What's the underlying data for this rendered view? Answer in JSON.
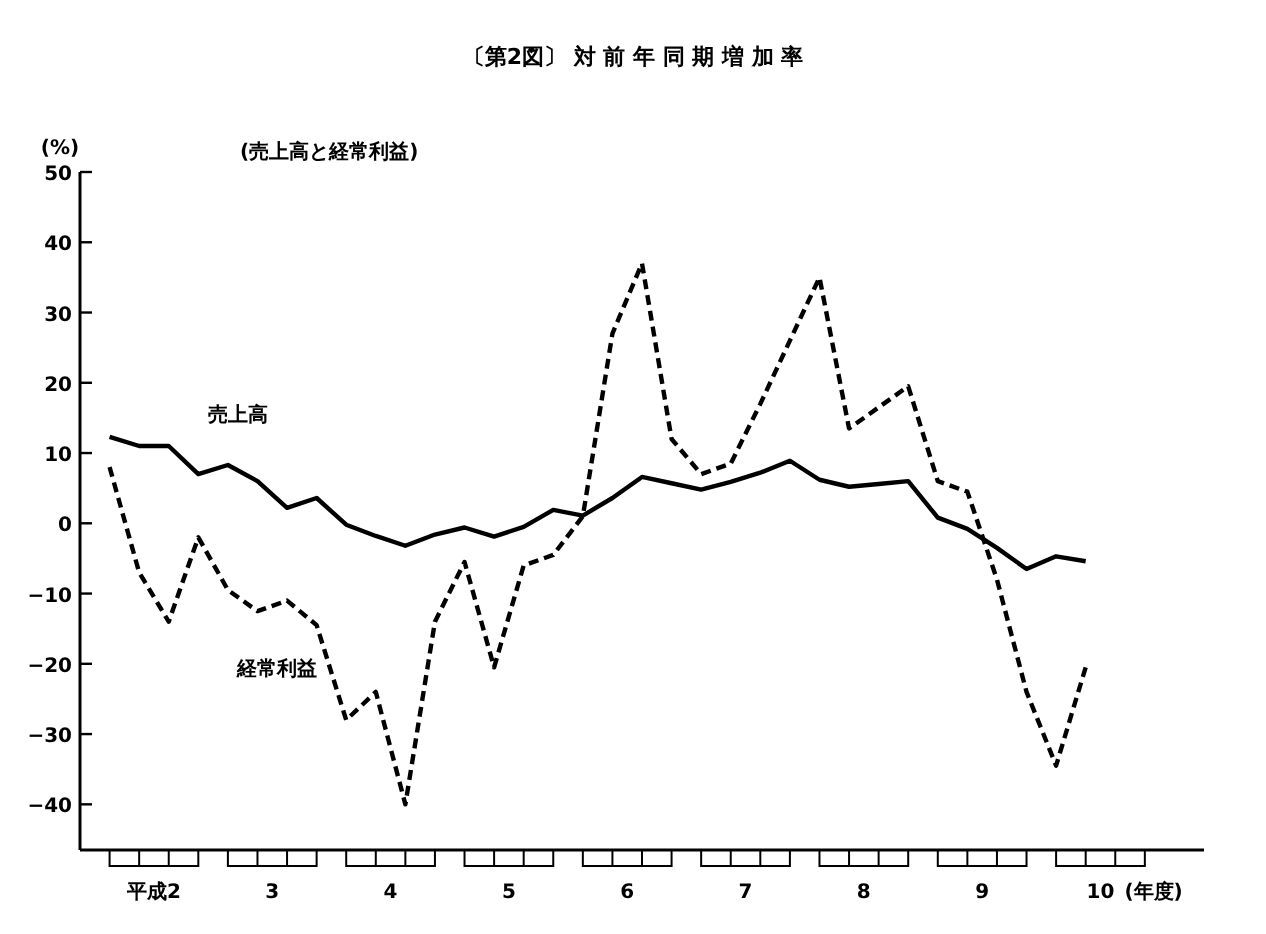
{
  "chart_data": {
    "type": "line",
    "title": "〔第2図〕 対 前 年 同 期 増 加 率",
    "subtitle": "(売上高と経常利益)",
    "ylabel": "(%)",
    "xlabel": "(年度)",
    "x": [
      2,
      2.25,
      2.5,
      2.75,
      3,
      3.25,
      3.5,
      3.75,
      4,
      4.25,
      4.5,
      4.75,
      5,
      5.25,
      5.5,
      5.75,
      6,
      6.25,
      6.5,
      6.75,
      7,
      7.25,
      7.5,
      7.75,
      8,
      8.25,
      8.5,
      8.75,
      9,
      9.25,
      9.5,
      9.75,
      10,
      10.25
    ],
    "xlim": [
      1.75,
      11.25
    ],
    "xticks": [
      {
        "value": 2.375,
        "label": "平成2"
      },
      {
        "value": 3.375,
        "label": "3"
      },
      {
        "value": 4.375,
        "label": "4"
      },
      {
        "value": 5.375,
        "label": "5"
      },
      {
        "value": 6.375,
        "label": "6"
      },
      {
        "value": 7.375,
        "label": "7"
      },
      {
        "value": 8.375,
        "label": "8"
      },
      {
        "value": 9.375,
        "label": "9"
      },
      {
        "value": 10.375,
        "label": "10"
      }
    ],
    "ylim": [
      -46.5,
      50
    ],
    "yticks": [
      -40,
      -30,
      -20,
      -10,
      0,
      10,
      20,
      30,
      40,
      50
    ],
    "grid": false,
    "legend": false,
    "marker": "none",
    "series": [
      {
        "name": "売上高",
        "color": "#000000",
        "line_style": "solid",
        "values": [
          12.3,
          11,
          11,
          7,
          8.3,
          6,
          2.2,
          3.6,
          -0.2,
          -1.8,
          -3.2,
          -1.6,
          -0.6,
          -1.9,
          -0.5,
          1.9,
          1.1,
          3.6,
          6.6,
          5.7,
          4.8,
          5.9,
          7.2,
          8.9,
          6.2,
          5.2,
          5.6,
          6,
          0.8,
          -0.8,
          -3.5,
          -6.5,
          -4.7,
          -5.4
        ]
      },
      {
        "name": "経常利益",
        "color": "#000000",
        "line_style": "dashed",
        "values": [
          8,
          -7,
          -14,
          -2,
          -9.5,
          -12.5,
          -11,
          -14.5,
          -28,
          -24,
          -40,
          -14,
          -5.5,
          -20.5,
          -6,
          -4.5,
          1,
          27,
          37,
          12,
          7,
          8.5,
          17,
          26,
          35,
          13.5,
          16.5,
          19.5,
          6,
          4.5,
          -8,
          -24,
          -34.5,
          -20.5
        ]
      }
    ]
  }
}
